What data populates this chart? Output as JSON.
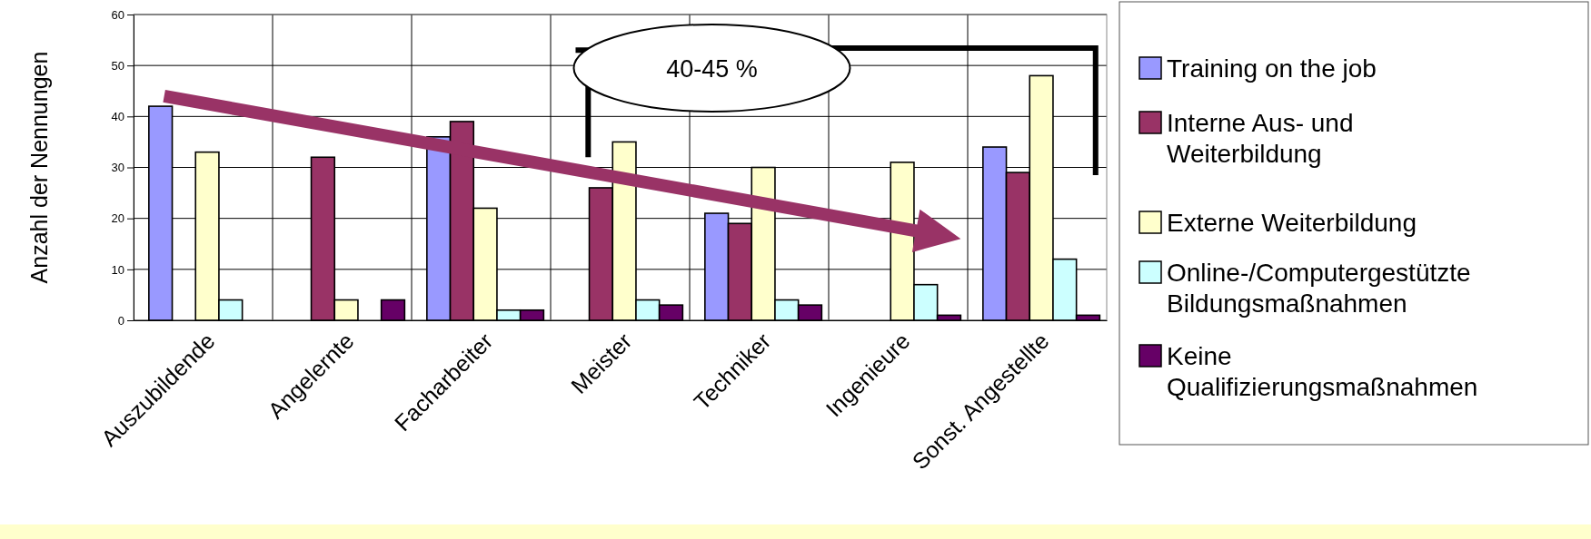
{
  "chart_data": {
    "type": "bar",
    "ylabel": "Anzahl der Nennungen",
    "categories": [
      "Auszubildende",
      "Angelernte",
      "Facharbeiter",
      "Meister",
      "Techniker",
      "Ingenieure",
      "Sonst. Angestellte"
    ],
    "series": [
      {
        "name": "Training on the job",
        "color": "#9999ff",
        "values": [
          42,
          null,
          36,
          null,
          21,
          null,
          34
        ]
      },
      {
        "name": "Interne Aus- und Weiterbildung",
        "color": "#993366",
        "values": [
          null,
          32,
          39,
          26,
          19,
          null,
          29
        ]
      },
      {
        "name": "Externe Weiterbildung",
        "color": "#ffffcc",
        "values": [
          33,
          4,
          22,
          35,
          30,
          31,
          48
        ]
      },
      {
        "name": "Online-/Computergestützte Bildungsmaßnahmen",
        "color": "#ccffff",
        "values": [
          4,
          0,
          2,
          4,
          4,
          7,
          12
        ]
      },
      {
        "name": "Keine Qualifizierungsmaßnahmen",
        "color": "#660066",
        "values": [
          0,
          4,
          2,
          3,
          3,
          1,
          1
        ]
      }
    ],
    "ylim": [
      0,
      60
    ],
    "yticks": [
      0,
      10,
      20,
      30,
      40,
      50,
      60
    ],
    "grid": true,
    "legend": "right",
    "annotations": [
      "40-45 %"
    ]
  }
}
